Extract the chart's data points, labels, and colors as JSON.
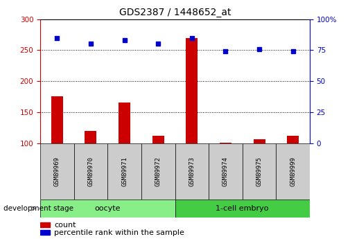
{
  "title": "GDS2387 / 1448652_at",
  "samples": [
    "GSM89969",
    "GSM89970",
    "GSM89971",
    "GSM89972",
    "GSM89973",
    "GSM89974",
    "GSM89975",
    "GSM89999"
  ],
  "count_values": [
    176,
    120,
    166,
    112,
    270,
    101,
    107,
    112
  ],
  "percentile_values": [
    85,
    80,
    83,
    80,
    85,
    74,
    76,
    74
  ],
  "left_ylim": [
    100,
    300
  ],
  "right_ylim": [
    0,
    100
  ],
  "left_yticks": [
    100,
    150,
    200,
    250,
    300
  ],
  "right_yticks": [
    0,
    25,
    50,
    75,
    100
  ],
  "bar_color": "#cc0000",
  "scatter_color": "#0000cc",
  "oocyte_color": "#88ee88",
  "embryo_color": "#44cc44",
  "group_box_color": "#cccccc",
  "legend_bar_label": "count",
  "legend_scatter_label": "percentile rank within the sample",
  "dev_stage_label": "development stage",
  "left_axis_color": "#cc0000",
  "right_axis_color": "#0000cc",
  "oocyte_count": 4,
  "embryo_count": 4
}
